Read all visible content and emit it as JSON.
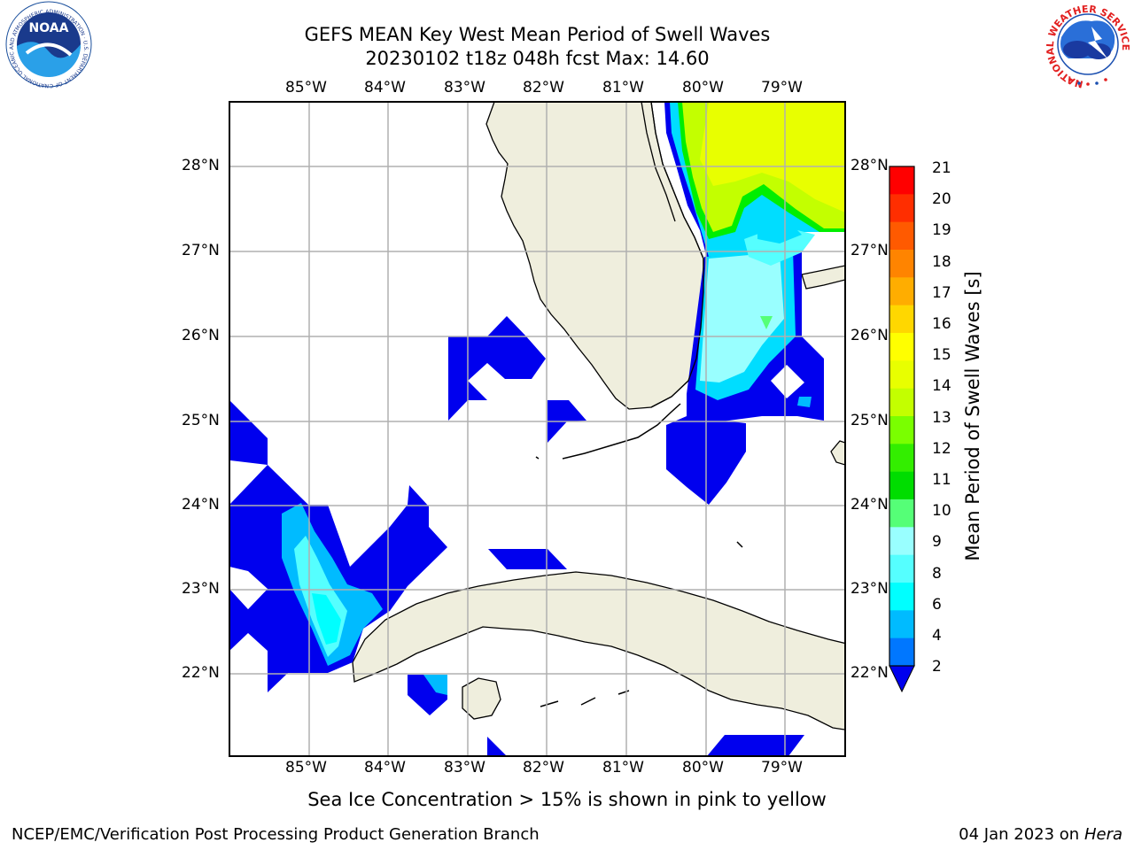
{
  "title_line1": "GEFS MEAN Key West Mean Period of Swell Waves",
  "title_line2": "20230102 t18z 048h fcst   Max: 14.60",
  "lon_labels": [
    "85°W",
    "84°W",
    "83°W",
    "82°W",
    "81°W",
    "80°W",
    "79°W"
  ],
  "lat_labels": [
    "28°N",
    "27°N",
    "26°N",
    "25°N",
    "24°N",
    "23°N",
    "22°N"
  ],
  "colorbar": {
    "label": "Mean Period of Swell Waves [s]",
    "ticks": [
      "21",
      "20",
      "19",
      "18",
      "17",
      "16",
      "15",
      "14",
      "13",
      "12",
      "11",
      "10",
      "9",
      "8",
      "6",
      "4",
      "2"
    ],
    "colors": [
      "#ff0000",
      "#ff2e00",
      "#ff5a00",
      "#ff8400",
      "#ffad00",
      "#ffd700",
      "#ffff00",
      "#e8ff00",
      "#c3ff00",
      "#7aff00",
      "#33ee00",
      "#00dd00",
      "#55ff77",
      "#99ffff",
      "#55ffff",
      "#00ffff",
      "#00bbff",
      "#0077ff"
    ],
    "under_color": "#0000ee"
  },
  "ice_note": "Sea Ice Concentration > 15% is shown in pink to yellow",
  "footer_left": "NCEP/EMC/Verification Post Processing Product Generation Branch",
  "footer_date": "04 Jan 2023 on",
  "footer_host": "Hera",
  "logos": {
    "noaa": {
      "text": "NOAA",
      "ring": "NATIONAL OCEANIC AND ATMOSPHERIC ADMINISTRATION · U.S. DEPARTMENT OF COMMERCE ·"
    },
    "nws": {
      "ring": "NATIONAL WEATHER SERVICE"
    }
  }
}
